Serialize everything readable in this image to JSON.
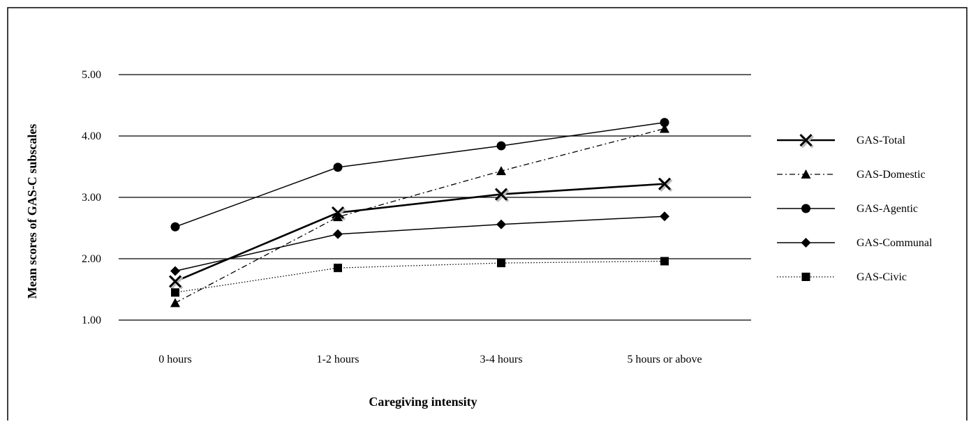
{
  "chart_data": {
    "type": "line",
    "title": "",
    "xlabel": "Caregiving intensity",
    "ylabel": "Mean scores of GAS-C subscales",
    "categories": [
      "0 hours",
      "1-2 hours",
      "3-4 hours",
      "5 hours or above"
    ],
    "ylim": [
      1.0,
      5.0
    ],
    "yticks": [
      "1.00",
      "2.00",
      "3.00",
      "4.00",
      "5.00"
    ],
    "grid": "horizontal",
    "legend_position": "right",
    "series": [
      {
        "name": "GAS-Total",
        "values": [
          1.63,
          2.75,
          3.05,
          3.22
        ],
        "marker": "x",
        "line": "solid-thick",
        "color": "#000000"
      },
      {
        "name": "GAS-Domestic",
        "values": [
          1.28,
          2.68,
          3.43,
          4.12
        ],
        "marker": "triangle",
        "line": "dash-dot",
        "color": "#000000"
      },
      {
        "name": "GAS-Agentic",
        "values": [
          2.52,
          3.49,
          3.84,
          4.22
        ],
        "marker": "circle",
        "line": "solid",
        "color": "#000000"
      },
      {
        "name": "GAS-Communal",
        "values": [
          1.8,
          2.4,
          2.56,
          2.69
        ],
        "marker": "diamond",
        "line": "solid",
        "color": "#000000"
      },
      {
        "name": "GAS-Civic",
        "values": [
          1.45,
          1.85,
          1.93,
          1.96
        ],
        "marker": "square",
        "line": "dotted",
        "color": "#000000"
      }
    ]
  }
}
